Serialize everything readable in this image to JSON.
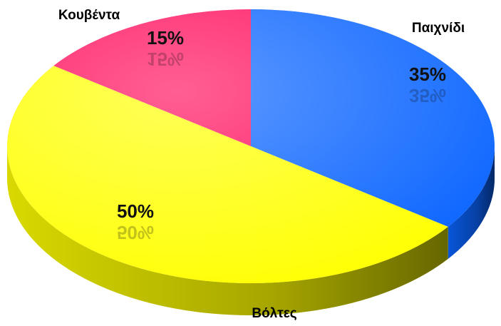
{
  "chart_data": {
    "type": "pie",
    "categories": [
      "Παιχνίδι",
      "Βόλτες",
      "Κουβέντα"
    ],
    "values": [
      35,
      50,
      15
    ],
    "value_labels": [
      "35%",
      "50%",
      "15%"
    ],
    "colors": [
      "#0a64ff",
      "#ffff00",
      "#ff0a5a"
    ]
  }
}
